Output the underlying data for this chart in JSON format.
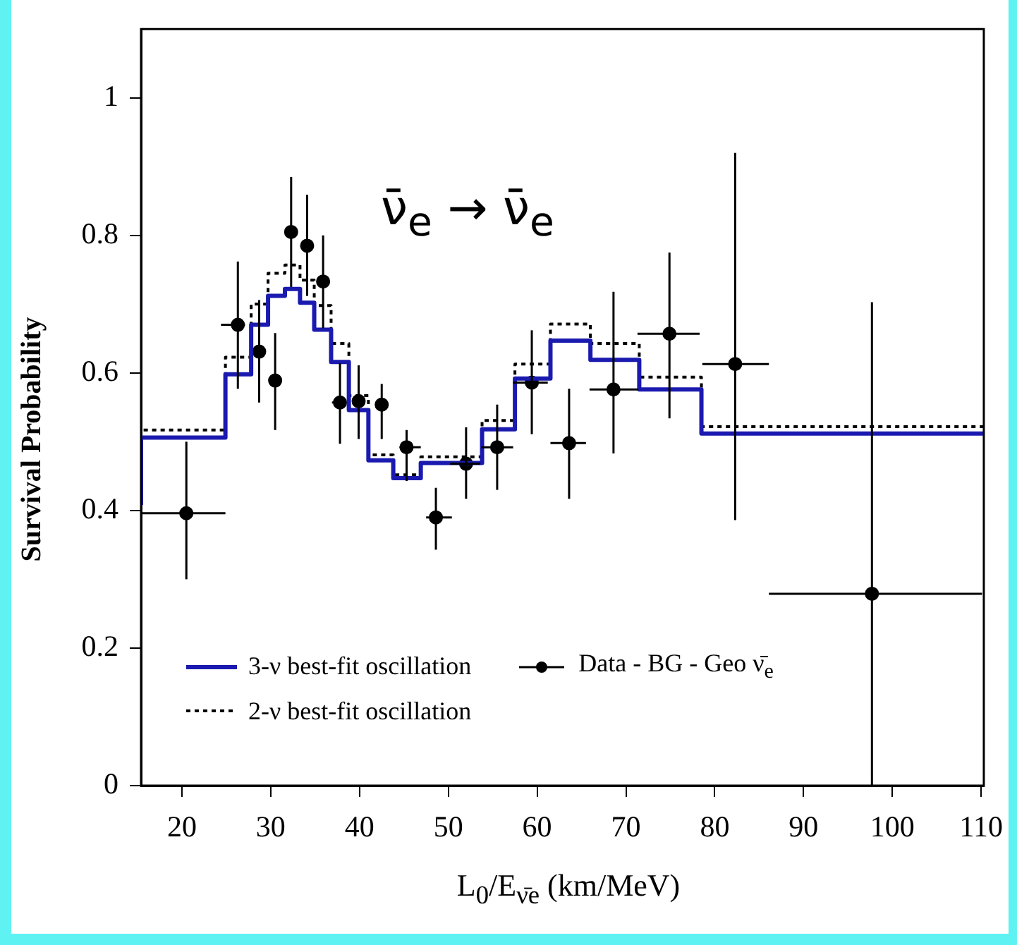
{
  "chart_data": {
    "type": "step",
    "xlabel": "L$_{0}$/E$_{ν̄e}$ (km/MeV)",
    "ylabel": "Survival Probability",
    "annotations": [
      "ν̄$_{e}$ → ν̄$_{e}$"
    ],
    "xlim": [
      15.4,
      110.3
    ],
    "xticks": [
      20,
      30,
      40,
      50,
      60,
      70,
      80,
      90,
      100,
      110
    ],
    "ylim": [
      0,
      1.1
    ],
    "yticks": [
      0,
      0.2,
      0.4,
      0.6,
      0.8,
      1
    ],
    "grid": false,
    "legend": "bottom left",
    "series": [
      {
        "name": "3-ν best-fit oscillation",
        "color": "#1a1ab0",
        "line_style": "solid",
        "x": [
          15.4,
          24.9,
          27.8,
          29.7,
          31.6,
          33.3,
          34.9,
          36.8,
          38.8,
          41.0,
          43.8,
          46.9,
          53.8,
          57.5,
          61.5,
          66.0,
          71.5,
          78.5,
          86.3,
          110.3
        ],
        "values": [
          0.408,
          0.506,
          0.598,
          0.67,
          0.712,
          0.722,
          0.702,
          0.663,
          0.616,
          0.546,
          0.473,
          0.447,
          0.469,
          0.518,
          0.592,
          0.647,
          0.619,
          0.576,
          0.512,
          0.512
        ]
      },
      {
        "name": "2-ν best-fit oscillation",
        "color": "#000000",
        "line_style": "dotted",
        "x": [
          15.4,
          24.9,
          27.8,
          29.7,
          31.6,
          33.3,
          34.9,
          36.8,
          38.8,
          41.0,
          43.8,
          46.9,
          53.8,
          57.5,
          61.5,
          66.0,
          71.5,
          78.5,
          86.3,
          110.3
        ],
        "values": [
          0.41,
          0.517,
          0.623,
          0.7,
          0.745,
          0.757,
          0.735,
          0.698,
          0.643,
          0.567,
          0.481,
          0.452,
          0.478,
          0.531,
          0.613,
          0.671,
          0.643,
          0.594,
          0.522,
          0.522
        ]
      },
      {
        "name": "Data - BG - Geo ν̄$_{e}$",
        "type": "scatter",
        "color": "#000000",
        "marker": "circle",
        "x": [
          20.5,
          26.3,
          28.7,
          30.5,
          32.3,
          34.1,
          35.9,
          37.8,
          39.9,
          42.5,
          45.3,
          48.6,
          52.0,
          55.5,
          59.4,
          63.6,
          68.6,
          74.9,
          82.3,
          97.7
        ],
        "values": [
          0.396,
          0.67,
          0.631,
          0.589,
          0.805,
          0.785,
          0.733,
          0.557,
          0.559,
          0.554,
          0.492,
          0.39,
          0.468,
          0.492,
          0.586,
          0.498,
          0.576,
          0.657,
          0.613,
          0.279
        ],
        "errors": [
          [
            0.3,
            0.5
          ],
          [
            0.577,
            0.762
          ],
          [
            0.557,
            0.706
          ],
          [
            0.517,
            0.658
          ],
          [
            0.725,
            0.885
          ],
          [
            0.712,
            0.859
          ],
          [
            0.665,
            0.8
          ],
          [
            0.497,
            0.614
          ],
          [
            0.504,
            0.611
          ],
          [
            0.504,
            0.584
          ],
          [
            0.443,
            0.517
          ],
          [
            0.343,
            0.433
          ],
          [
            0.417,
            0.521
          ],
          [
            0.43,
            0.554
          ],
          [
            0.511,
            0.662
          ],
          [
            0.417,
            0.577
          ],
          [
            0.483,
            0.718
          ],
          [
            0.534,
            0.775
          ],
          [
            0.386,
            0.92
          ],
          [
            0,
            0.703
          ]
        ],
        "xerrors": [
          [
            15.4,
            24.9
          ],
          [
            24.4,
            27.1
          ],
          [
            28.0,
            29.3
          ],
          null,
          null,
          null,
          null,
          [
            36.9,
            38.5
          ],
          null,
          null,
          [
            44.5,
            46.9
          ],
          [
            47.5,
            50.4
          ],
          [
            50.2,
            53.6
          ],
          [
            53.7,
            57.3
          ],
          [
            57.3,
            61.2
          ],
          [
            61.5,
            65.5
          ],
          [
            65.9,
            71.4
          ],
          [
            71.3,
            78.3
          ],
          [
            78.6,
            86.1
          ],
          [
            86.1,
            110.1
          ]
        ]
      }
    ]
  }
}
